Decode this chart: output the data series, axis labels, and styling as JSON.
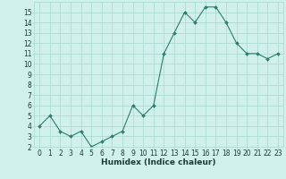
{
  "x": [
    0,
    1,
    2,
    3,
    4,
    5,
    6,
    7,
    8,
    9,
    10,
    11,
    12,
    13,
    14,
    15,
    16,
    17,
    18,
    19,
    20,
    21,
    22,
    23
  ],
  "y": [
    4,
    5,
    3.5,
    3,
    3.5,
    2,
    2.5,
    3,
    3.5,
    6,
    5,
    6,
    11,
    13,
    15,
    14,
    15.5,
    15.5,
    14,
    12,
    11,
    11,
    10.5,
    11
  ],
  "xlabel": "Humidex (Indice chaleur)",
  "line_color": "#2e7d6e",
  "marker": "D",
  "marker_size": 2,
  "bg_color": "#cff0eb",
  "grid_color": "#a8d8d0",
  "xlim": [
    -0.5,
    23.5
  ],
  "ylim": [
    2,
    16
  ],
  "xticks": [
    0,
    1,
    2,
    3,
    4,
    5,
    6,
    7,
    8,
    9,
    10,
    11,
    12,
    13,
    14,
    15,
    16,
    17,
    18,
    19,
    20,
    21,
    22,
    23
  ],
  "yticks": [
    2,
    3,
    4,
    5,
    6,
    7,
    8,
    9,
    10,
    11,
    12,
    13,
    14,
    15
  ],
  "text_color": "#1a3d35",
  "tick_fontsize": 5.5,
  "xlabel_fontsize": 6.5
}
